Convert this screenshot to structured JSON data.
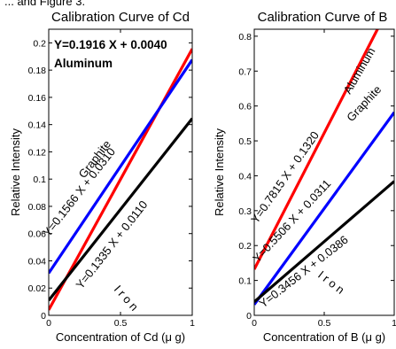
{
  "header_fragment": "... and Figure 3.",
  "chart_data": [
    {
      "type": "line",
      "title": "Calibration Curve of Cd",
      "xlabel": "Concentration of Cd (μ g)",
      "ylabel": "Relative Intensity",
      "xlim": [
        0,
        1
      ],
      "ylim": [
        0,
        0.21
      ],
      "xticks": [
        0,
        0.5,
        1
      ],
      "xtick_labels": [
        "0",
        "0.5",
        "1"
      ],
      "yticks": [
        0,
        0.02,
        0.04,
        0.06,
        0.08,
        0.1,
        0.12,
        0.14,
        0.16,
        0.18,
        0.2
      ],
      "ytick_labels": [
        "0",
        "0.02",
        "0.04",
        "0.06",
        "0.08",
        "0.1",
        "0.12",
        "0.14",
        "0.16",
        "0.18",
        "0.2"
      ],
      "grid": false,
      "series": [
        {
          "name": "Aluminum",
          "color": "#ff0000",
          "x": [
            0.0,
            1.0
          ],
          "y": [
            0.004,
            0.1956
          ],
          "equation": "Y=0.1916 X + 0.0040"
        },
        {
          "name": "Graphite",
          "color": "#0000ff",
          "x": [
            0.0,
            1.0
          ],
          "y": [
            0.031,
            0.1876
          ],
          "equation": "Y=0.1566 X + 0.0310"
        },
        {
          "name": "I r o n",
          "color": "#000000",
          "x": [
            0.0,
            1.0
          ],
          "y": [
            0.011,
            0.1445
          ],
          "equation": "Y=0.1335 X + 0.0110"
        }
      ]
    },
    {
      "type": "line",
      "title": "Calibration Curve of B",
      "xlabel": "Concentration of B (μ g)",
      "ylabel": "Relative Intensity",
      "xlim": [
        0,
        1
      ],
      "ylim": [
        0,
        0.82
      ],
      "xticks": [
        0,
        0.5,
        1
      ],
      "xtick_labels": [
        "0",
        "0.5",
        "1"
      ],
      "yticks": [
        0,
        0.1,
        0.2,
        0.3,
        0.4,
        0.5,
        0.6,
        0.7,
        0.8
      ],
      "ytick_labels": [
        "0",
        "0.1",
        "0.2",
        "0.3",
        "0.4",
        "0.5",
        "0.6",
        "0.7",
        "0.8"
      ],
      "grid": false,
      "series": [
        {
          "name": "Aluminum",
          "color": "#ff0000",
          "x": [
            0.0,
            1.0
          ],
          "y": [
            0.132,
            0.9135
          ],
          "equation": "Y=0.7815 X + 0.1320"
        },
        {
          "name": "Graphite",
          "color": "#0000ff",
          "x": [
            0.0,
            1.0
          ],
          "y": [
            0.0311,
            0.5817
          ],
          "equation": "Y=0.5506 X + 0.0311"
        },
        {
          "name": "I r o n",
          "color": "#000000",
          "x": [
            0.0,
            1.0
          ],
          "y": [
            0.0386,
            0.3842
          ],
          "equation": "Y=0.3456 X + 0.0386"
        }
      ]
    }
  ]
}
